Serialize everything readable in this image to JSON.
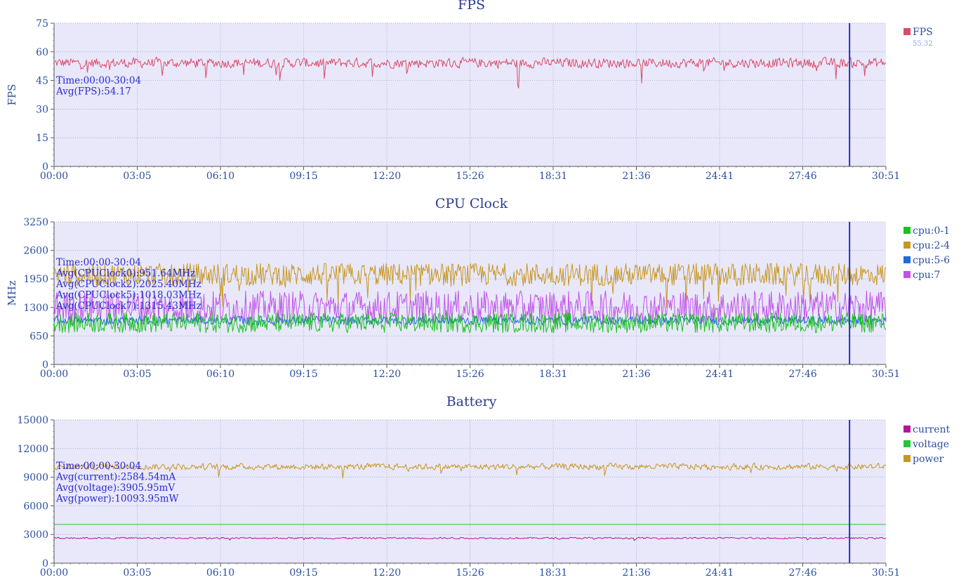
{
  "colors": {
    "axis_text": "#2b4f9e",
    "title_text": "#2b3a8f",
    "plot_bg": "#e8e8fa",
    "grid": "#9aa6c8",
    "cursor": "#2233bb",
    "overlay_text": "#2a2ad0",
    "fps": "#dc4a6a",
    "cpu0": "#19c21f",
    "cpu2": "#c8961e",
    "cpu5": "#1f6ae0",
    "cpu7": "#c252e8",
    "current": "#b7139a",
    "voltage": "#27c43a",
    "power": "#c8961e"
  },
  "x_ticks": [
    "00:00",
    "03:05",
    "06:10",
    "09:15",
    "12:20",
    "15:26",
    "18:31",
    "21:36",
    "24:41",
    "27:46",
    "30:51"
  ],
  "cursor_time_minutes": 29.5,
  "chart_data": [
    {
      "type": "line",
      "title": "FPS",
      "ylabel": "FPS",
      "xlabel": "",
      "xlim_minutes": [
        0,
        30.85
      ],
      "ylim": [
        0,
        75
      ],
      "yticks": [
        0,
        15,
        30,
        45,
        60,
        75
      ],
      "grid": true,
      "legend_position": "right",
      "legend": [
        {
          "name": "FPS",
          "value": "55.32"
        }
      ],
      "overlay": [
        "Time:00:00-30:04",
        "Avg(FPS):54.17"
      ],
      "series": [
        {
          "name": "FPS",
          "color_key": "fps",
          "base": 54.2,
          "noise": 3.2,
          "spike_depth": 15,
          "spike_rate": 0.035,
          "cap": 60,
          "floor": 30,
          "smooth": 0.25
        }
      ]
    },
    {
      "type": "line",
      "title": "CPU Clock",
      "ylabel": "MHz",
      "xlabel": "",
      "xlim_minutes": [
        0,
        30.85
      ],
      "ylim": [
        0,
        3250
      ],
      "yticks": [
        0,
        650,
        1300,
        1950,
        2600,
        3250
      ],
      "grid": true,
      "legend_position": "right",
      "legend": [
        {
          "name": "cpu:0-1"
        },
        {
          "name": "cpu:2-4"
        },
        {
          "name": "cpu:5-6"
        },
        {
          "name": "cpu:7"
        }
      ],
      "overlay": [
        "Time:00:00-30:04",
        "Avg(CPUClock0):951.64MHz",
        "Avg(CPUClock2):2025.40MHz",
        "Avg(CPUClock5):1018.03MHz",
        "Avg(CPUClock7):1315.43MHz"
      ],
      "series": [
        {
          "name": "cpu:2-4",
          "color_key": "cpu2",
          "base": 2050,
          "noise": 260,
          "spike_depth": 750,
          "spike_rate": 0.06,
          "cap": 2300,
          "floor": 1250,
          "smooth": 0.0
        },
        {
          "name": "cpu:7",
          "color_key": "cpu7",
          "base": 1300,
          "noise": 380,
          "spike_depth": 0,
          "spike_rate": 0,
          "cap": 2200,
          "floor": 850,
          "smooth": 0.0
        },
        {
          "name": "cpu:5-6",
          "color_key": "cpu5",
          "base": 1000,
          "noise": 120,
          "spike_depth": 0,
          "spike_rate": 0,
          "cap": 1300,
          "floor": 650,
          "smooth": 0.2
        },
        {
          "name": "cpu:0-1",
          "color_key": "cpu0",
          "base": 950,
          "noise": 230,
          "spike_depth": 0,
          "spike_rate": 0,
          "cap": 1250,
          "floor": 650,
          "smooth": 0.0
        }
      ]
    },
    {
      "type": "line",
      "title": "Battery",
      "ylabel": "",
      "xlabel": "",
      "xlim_minutes": [
        0,
        30.85
      ],
      "ylim": [
        0,
        15000
      ],
      "yticks": [
        0,
        3000,
        6000,
        9000,
        12000,
        15000
      ],
      "grid": true,
      "legend_position": "right",
      "legend": [
        {
          "name": "current"
        },
        {
          "name": "voltage"
        },
        {
          "name": "power"
        }
      ],
      "overlay": [
        "Time:00:00-30:04",
        "Avg(current):2584.54mA",
        "Avg(voltage):3905.95mV",
        "Avg(power):10093.95mW"
      ],
      "series": [
        {
          "name": "power",
          "color_key": "power",
          "base": 10100,
          "noise": 420,
          "spike_depth": 1800,
          "spike_rate": 0.02,
          "cap": 11800,
          "floor": 6300,
          "smooth": 0.3
        },
        {
          "name": "voltage",
          "color_key": "voltage",
          "base": 4050,
          "noise": 0,
          "spike_depth": 0,
          "spike_rate": 0,
          "cap": 4100,
          "floor": 3800,
          "smooth": 1.0,
          "trend": -250
        },
        {
          "name": "current",
          "color_key": "current",
          "base": 2620,
          "noise": 110,
          "spike_depth": 400,
          "spike_rate": 0.01,
          "cap": 3000,
          "floor": 1700,
          "smooth": 0.3
        }
      ]
    }
  ]
}
